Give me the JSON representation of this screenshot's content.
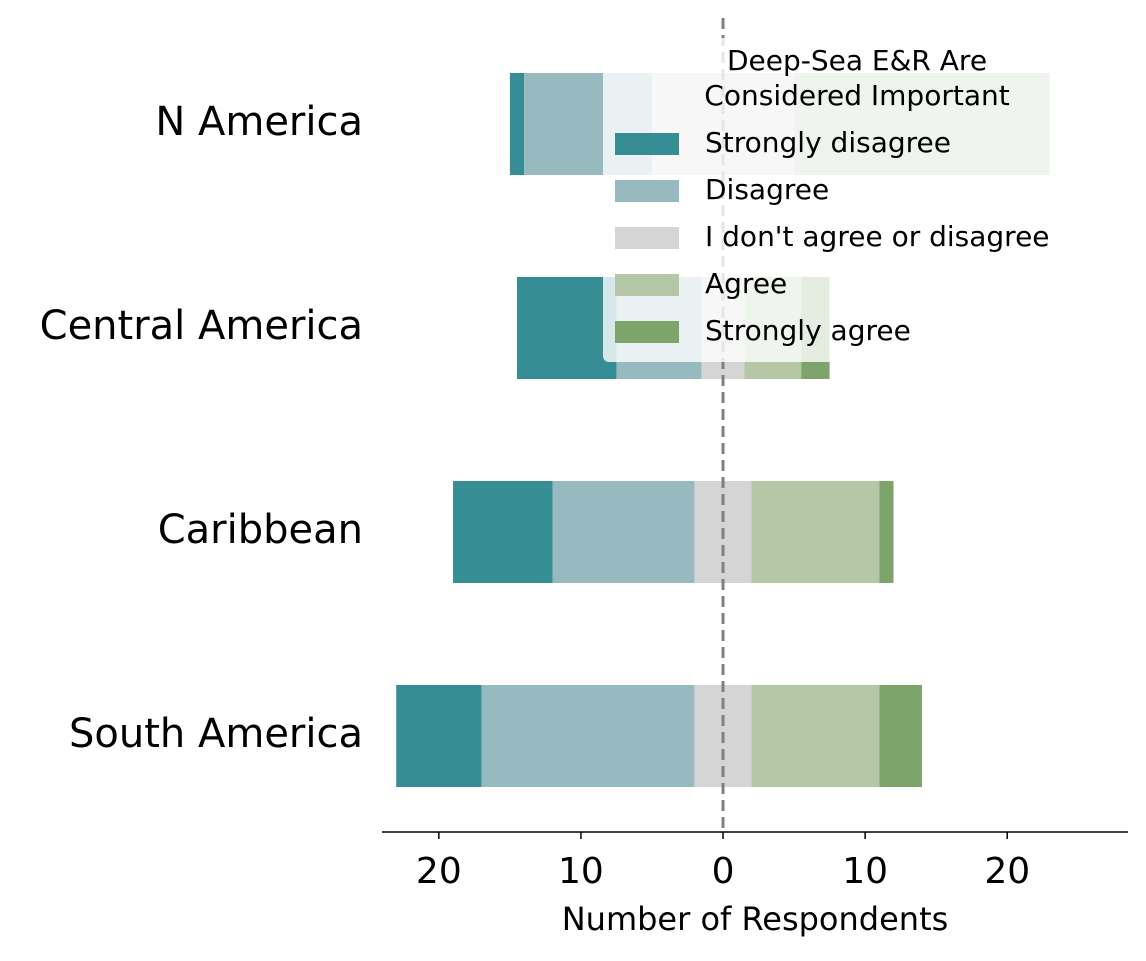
{
  "chart_data": {
    "type": "diverging_bar",
    "xlabel": "Number of Respondents",
    "legend_title": [
      "Deep-Sea E&R Are",
      "Considered Important"
    ],
    "legend_position": "upper right",
    "categories": [
      "N America",
      "Central America",
      "Caribbean",
      "South America"
    ],
    "series": [
      {
        "name": "Strongly disagree",
        "color": "#378d94",
        "values": [
          1,
          7,
          7,
          6
        ]
      },
      {
        "name": "Disagree",
        "color": "#96babf",
        "values": [
          9,
          6,
          10,
          15
        ]
      },
      {
        "name": "I don't agree or disagree",
        "color": "#d5d5d5",
        "values": [
          10,
          3,
          4,
          4
        ]
      },
      {
        "name": "Agree",
        "color": "#b4c8a8",
        "values": [
          18,
          4,
          9,
          9
        ]
      },
      {
        "name": "Strongly agree",
        "color": "#7da46a",
        "values": [
          0,
          2,
          1,
          3
        ]
      }
    ],
    "xlim": [
      -24,
      28.5
    ],
    "xticks": [
      {
        "value": -20,
        "label": "20"
      },
      {
        "value": -10,
        "label": "10"
      },
      0,
      10,
      20
    ]
  }
}
